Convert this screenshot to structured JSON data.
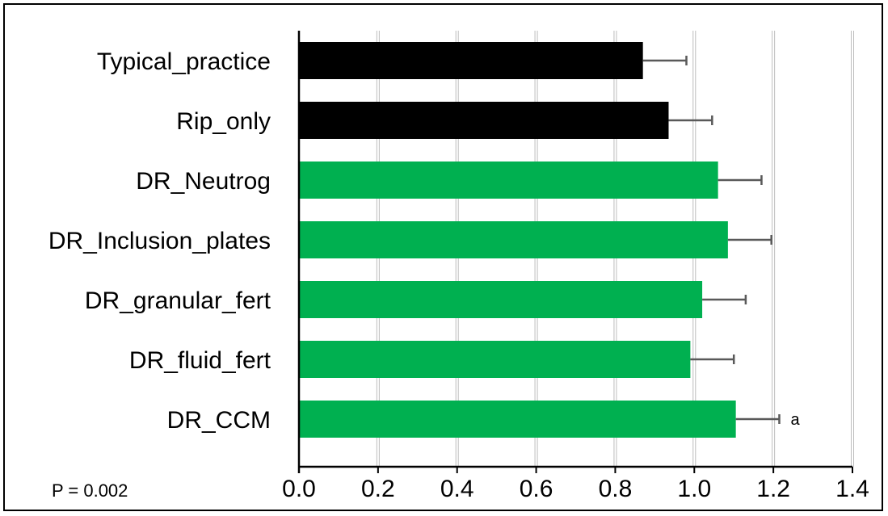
{
  "chart_data": {
    "type": "bar",
    "orientation": "horizontal",
    "categories": [
      "Typical_practice",
      "Rip_only",
      "DR_Neutrog",
      "DR_Inclusion_plates",
      "DR_granular_fert",
      "DR_fluid_fert",
      "DR_CCM"
    ],
    "values": [
      0.87,
      0.935,
      1.06,
      1.085,
      1.02,
      0.99,
      1.105
    ],
    "errors": [
      0.11,
      0.11,
      0.11,
      0.11,
      0.11,
      0.11,
      0.11
    ],
    "bar_colors": [
      "#000000",
      "#000000",
      "#00b050",
      "#00b050",
      "#00b050",
      "#00b050",
      "#00b050"
    ],
    "annotations": [
      "",
      "",
      "",
      "",
      "",
      "",
      "a"
    ],
    "xlim": [
      0,
      1.4
    ],
    "x_ticks": [
      "0.0",
      "0.2",
      "0.4",
      "0.6",
      "0.8",
      "1.0",
      "1.2",
      "1.4"
    ],
    "x_tick_values": [
      0,
      0.2,
      0.4,
      0.6,
      0.8,
      1.0,
      1.2,
      1.4
    ],
    "grid": true,
    "note": "P = 0.002"
  }
}
